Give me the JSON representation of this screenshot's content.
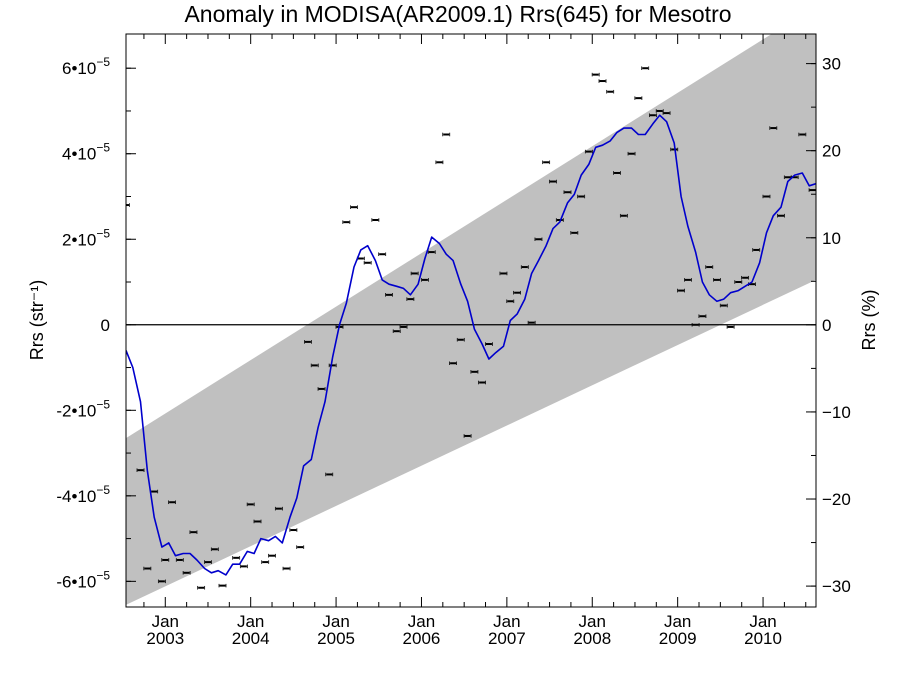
{
  "chart_data": {
    "type": "line",
    "title": "Anomaly in MODISA(AR2009.1) Rrs(645) for Mesotro",
    "ylabel_left": "Rrs (str⁻¹)",
    "ylabel_right": "Rrs (%)",
    "x_ticks": [
      {
        "month": "Jan",
        "year": "2003",
        "x": 2003.0
      },
      {
        "month": "Jan",
        "year": "2004",
        "x": 2004.0
      },
      {
        "month": "Jan",
        "year": "2005",
        "x": 2005.0
      },
      {
        "month": "Jan",
        "year": "2006",
        "x": 2006.0
      },
      {
        "month": "Jan",
        "year": "2007",
        "x": 2007.0
      },
      {
        "month": "Jan",
        "year": "2008",
        "x": 2008.0
      },
      {
        "month": "Jan",
        "year": "2009",
        "x": 2009.0
      },
      {
        "month": "Jan",
        "year": "2010",
        "x": 2010.0
      }
    ],
    "xlim": [
      2002.54,
      2010.62
    ],
    "ylim_left": [
      -6.6e-05,
      6.8e-05
    ],
    "ylim_right": [
      -32.4,
      33.4
    ],
    "y_ticks_left": [
      {
        "value": 6e-05,
        "mantissa": "6•10",
        "exp": "−5"
      },
      {
        "value": 4e-05,
        "mantissa": "4•10",
        "exp": "−5"
      },
      {
        "value": 2e-05,
        "mantissa": "2•10",
        "exp": "−5"
      },
      {
        "value": 0,
        "mantissa": "0",
        "exp": ""
      },
      {
        "value": -2e-05,
        "mantissa": "-2•10",
        "exp": "−5"
      },
      {
        "value": -4e-05,
        "mantissa": "-4•10",
        "exp": "−5"
      },
      {
        "value": -6e-05,
        "mantissa": "-6•10",
        "exp": "−5"
      }
    ],
    "y_ticks_right": [
      {
        "value": 30,
        "label": "30"
      },
      {
        "value": 20,
        "label": "20"
      },
      {
        "value": 10,
        "label": "10"
      },
      {
        "value": 0,
        "label": "0"
      },
      {
        "value": -10,
        "label": "−10"
      },
      {
        "value": -20,
        "label": "−20"
      },
      {
        "value": -30,
        "label": "−30"
      }
    ],
    "zero_line": 0,
    "envelope": {
      "color": "#c0c0c0",
      "upper": [
        [
          2002.54,
          -2.65e-05
        ],
        [
          2010.62,
          7.45e-05
        ]
      ],
      "lower": [
        [
          2002.54,
          -6.55e-05
        ],
        [
          2010.62,
          1.05e-05
        ]
      ]
    },
    "smoothed_line": {
      "color": "#0000cc",
      "points": [
        [
          2002.54,
          -6e-06
        ],
        [
          2002.62,
          -1e-05
        ],
        [
          2002.71,
          -1.8e-05
        ],
        [
          2002.79,
          -3.4e-05
        ],
        [
          2002.87,
          -4.5e-05
        ],
        [
          2002.96,
          -5.2e-05
        ],
        [
          2003.04,
          -5.1e-05
        ],
        [
          2003.12,
          -5.4e-05
        ],
        [
          2003.21,
          -5.35e-05
        ],
        [
          2003.29,
          -5.35e-05
        ],
        [
          2003.37,
          -5.5e-05
        ],
        [
          2003.46,
          -5.7e-05
        ],
        [
          2003.54,
          -5.8e-05
        ],
        [
          2003.62,
          -5.75e-05
        ],
        [
          2003.71,
          -5.85e-05
        ],
        [
          2003.79,
          -5.6e-05
        ],
        [
          2003.87,
          -5.6e-05
        ],
        [
          2003.96,
          -5.3e-05
        ],
        [
          2004.04,
          -5.35e-05
        ],
        [
          2004.12,
          -5e-05
        ],
        [
          2004.21,
          -5.05e-05
        ],
        [
          2004.29,
          -4.95e-05
        ],
        [
          2004.37,
          -5.1e-05
        ],
        [
          2004.46,
          -4.5e-05
        ],
        [
          2004.54,
          -4.05e-05
        ],
        [
          2004.62,
          -3.3e-05
        ],
        [
          2004.71,
          -3.15e-05
        ],
        [
          2004.79,
          -2.4e-05
        ],
        [
          2004.87,
          -1.8e-05
        ],
        [
          2004.96,
          -7.5e-06
        ],
        [
          2005.04,
          0.0
        ],
        [
          2005.12,
          5e-06
        ],
        [
          2005.21,
          1.35e-05
        ],
        [
          2005.29,
          1.75e-05
        ],
        [
          2005.37,
          1.85e-05
        ],
        [
          2005.46,
          1.5e-05
        ],
        [
          2005.54,
          1.05e-05
        ],
        [
          2005.62,
          9.5e-06
        ],
        [
          2005.71,
          9e-06
        ],
        [
          2005.79,
          8.5e-06
        ],
        [
          2005.87,
          7e-06
        ],
        [
          2005.96,
          9.5e-06
        ],
        [
          2006.04,
          1.55e-05
        ],
        [
          2006.12,
          2.05e-05
        ],
        [
          2006.21,
          1.9e-05
        ],
        [
          2006.29,
          1.65e-05
        ],
        [
          2006.37,
          1.5e-05
        ],
        [
          2006.46,
          9.5e-06
        ],
        [
          2006.54,
          5.5e-06
        ],
        [
          2006.62,
          -1e-06
        ],
        [
          2006.71,
          -4.5e-06
        ],
        [
          2006.79,
          -8e-06
        ],
        [
          2006.87,
          -6.5e-06
        ],
        [
          2006.96,
          -5e-06
        ],
        [
          2007.04,
          1e-06
        ],
        [
          2007.12,
          2.5e-06
        ],
        [
          2007.21,
          6e-06
        ],
        [
          2007.29,
          1.2e-05
        ],
        [
          2007.37,
          1.5e-05
        ],
        [
          2007.46,
          1.85e-05
        ],
        [
          2007.54,
          2.25e-05
        ],
        [
          2007.62,
          2.4e-05
        ],
        [
          2007.71,
          2.85e-05
        ],
        [
          2007.79,
          3.05e-05
        ],
        [
          2007.87,
          3.5e-05
        ],
        [
          2007.96,
          3.75e-05
        ],
        [
          2008.04,
          4.15e-05
        ],
        [
          2008.12,
          4.2e-05
        ],
        [
          2008.21,
          4.3e-05
        ],
        [
          2008.29,
          4.5e-05
        ],
        [
          2008.37,
          4.6e-05
        ],
        [
          2008.46,
          4.6e-05
        ],
        [
          2008.54,
          4.45e-05
        ],
        [
          2008.62,
          4.45e-05
        ],
        [
          2008.71,
          4.7e-05
        ],
        [
          2008.79,
          4.9e-05
        ],
        [
          2008.87,
          4.75e-05
        ],
        [
          2008.96,
          4.25e-05
        ],
        [
          2009.04,
          3e-05
        ],
        [
          2009.12,
          2.3e-05
        ],
        [
          2009.21,
          1.7e-05
        ],
        [
          2009.29,
          1e-05
        ],
        [
          2009.37,
          7e-06
        ],
        [
          2009.46,
          5.5e-06
        ],
        [
          2009.54,
          6e-06
        ],
        [
          2009.62,
          7.5e-06
        ],
        [
          2009.71,
          8e-06
        ],
        [
          2009.79,
          9e-06
        ],
        [
          2009.87,
          1e-05
        ],
        [
          2009.96,
          1.45e-05
        ],
        [
          2010.04,
          2.15e-05
        ],
        [
          2010.12,
          2.55e-05
        ],
        [
          2010.21,
          2.75e-05
        ],
        [
          2010.29,
          3.35e-05
        ],
        [
          2010.37,
          3.5e-05
        ],
        [
          2010.46,
          3.55e-05
        ],
        [
          2010.54,
          3.25e-05
        ],
        [
          2010.62,
          3.3e-05
        ]
      ]
    },
    "monthly_points": {
      "color": "#000000",
      "points": [
        [
          2002.54,
          2.8e-05
        ],
        [
          2002.71,
          -3.4e-05
        ],
        [
          2002.79,
          -5.7e-05
        ],
        [
          2002.87,
          -3.9e-05
        ],
        [
          2002.96,
          -6e-05
        ],
        [
          2003.0,
          -5.5e-05
        ],
        [
          2003.08,
          -4.15e-05
        ],
        [
          2003.17,
          -5.5e-05
        ],
        [
          2003.25,
          -5.8e-05
        ],
        [
          2003.33,
          -4.85e-05
        ],
        [
          2003.42,
          -6.15e-05
        ],
        [
          2003.5,
          -5.55e-05
        ],
        [
          2003.58,
          -5.25e-05
        ],
        [
          2003.67,
          -6.1e-05
        ],
        [
          2003.83,
          -5.45e-05
        ],
        [
          2003.92,
          -5.65e-05
        ],
        [
          2004.0,
          -4.2e-05
        ],
        [
          2004.08,
          -4.6e-05
        ],
        [
          2004.17,
          -5.55e-05
        ],
        [
          2004.25,
          -5.4e-05
        ],
        [
          2004.33,
          -4.3e-05
        ],
        [
          2004.42,
          -5.7e-05
        ],
        [
          2004.5,
          -4.8e-05
        ],
        [
          2004.58,
          -5.2e-05
        ],
        [
          2004.67,
          -4e-06
        ],
        [
          2004.75,
          -9.5e-06
        ],
        [
          2004.83,
          -1.5e-05
        ],
        [
          2004.92,
          -3.5e-05
        ],
        [
          2004.96,
          -9.5e-06
        ],
        [
          2005.04,
          -5e-07
        ],
        [
          2005.12,
          2.4e-05
        ],
        [
          2005.21,
          2.75e-05
        ],
        [
          2005.29,
          1.55e-05
        ],
        [
          2005.37,
          1.45e-05
        ],
        [
          2005.46,
          2.45e-05
        ],
        [
          2005.54,
          1.65e-05
        ],
        [
          2005.62,
          7e-06
        ],
        [
          2005.71,
          -1.5e-06
        ],
        [
          2005.79,
          -5e-07
        ],
        [
          2005.87,
          6e-06
        ],
        [
          2005.92,
          1.2e-05
        ],
        [
          2006.04,
          1.05e-05
        ],
        [
          2006.12,
          1.7e-05
        ],
        [
          2006.21,
          3.8e-05
        ],
        [
          2006.29,
          4.45e-05
        ],
        [
          2006.37,
          -9e-06
        ],
        [
          2006.46,
          -3.5e-06
        ],
        [
          2006.54,
          -2.6e-05
        ],
        [
          2006.62,
          -1.1e-05
        ],
        [
          2006.71,
          -1.35e-05
        ],
        [
          2006.79,
          -4.5e-06
        ],
        [
          2006.96,
          1.2e-05
        ],
        [
          2007.04,
          5.5e-06
        ],
        [
          2007.12,
          7.5e-06
        ],
        [
          2007.21,
          1.35e-05
        ],
        [
          2007.29,
          5e-07
        ],
        [
          2007.37,
          2e-05
        ],
        [
          2007.46,
          3.8e-05
        ],
        [
          2007.54,
          3.35e-05
        ],
        [
          2007.62,
          2.45e-05
        ],
        [
          2007.71,
          3.1e-05
        ],
        [
          2007.79,
          2.15e-05
        ],
        [
          2007.87,
          3e-05
        ],
        [
          2007.96,
          4.05e-05
        ],
        [
          2008.04,
          5.85e-05
        ],
        [
          2008.12,
          5.7e-05
        ],
        [
          2008.21,
          5.45e-05
        ],
        [
          2008.29,
          3.55e-05
        ],
        [
          2008.37,
          2.55e-05
        ],
        [
          2008.46,
          4e-05
        ],
        [
          2008.54,
          5.3e-05
        ],
        [
          2008.62,
          6e-05
        ],
        [
          2008.71,
          4.9e-05
        ],
        [
          2008.79,
          5e-05
        ],
        [
          2008.87,
          4.95e-05
        ],
        [
          2008.96,
          4.1e-05
        ],
        [
          2009.04,
          8e-06
        ],
        [
          2009.12,
          1.05e-05
        ],
        [
          2009.21,
          0.0
        ],
        [
          2009.29,
          2e-06
        ],
        [
          2009.37,
          1.35e-05
        ],
        [
          2009.46,
          1.05e-05
        ],
        [
          2009.54,
          4.5e-06
        ],
        [
          2009.62,
          -5e-07
        ],
        [
          2009.71,
          1e-05
        ],
        [
          2009.79,
          1.1e-05
        ],
        [
          2009.87,
          9.5e-06
        ],
        [
          2009.92,
          1.75e-05
        ],
        [
          2010.04,
          3e-05
        ],
        [
          2010.12,
          4.6e-05
        ],
        [
          2010.21,
          2.55e-05
        ],
        [
          2010.29,
          3.45e-05
        ],
        [
          2010.37,
          3.45e-05
        ],
        [
          2010.46,
          4.45e-05
        ],
        [
          2010.58,
          3.15e-05
        ]
      ]
    }
  }
}
